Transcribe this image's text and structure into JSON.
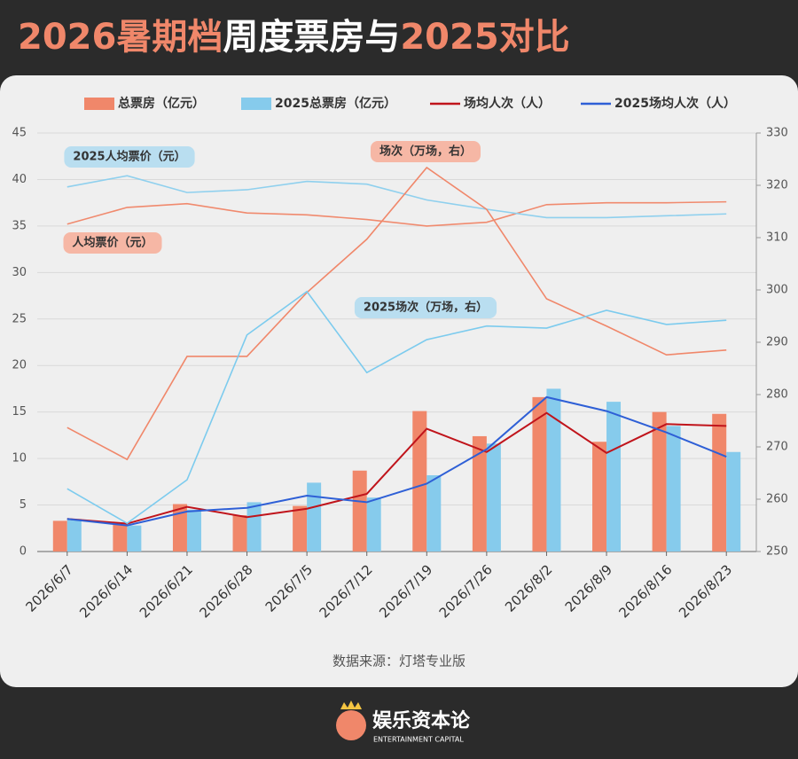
{
  "chart_data": {
    "type": "bar-line",
    "title": [
      "2026暑期档",
      "周度票房与",
      "2025对比"
    ],
    "source": "数据来源：灯塔专业版",
    "brand": "娱乐资本论",
    "brand_sub": "ENTERTAINMENT CAPITAL",
    "categories": [
      "2026/6/7",
      "2026/6/14",
      "2026/6/21",
      "2026/6/28",
      "2026/7/5",
      "2026/7/12",
      "2026/7/19",
      "2026/7/26",
      "2026/8/2",
      "2026/8/9",
      "2026/8/16",
      "2026/8/23"
    ],
    "ylim": [
      0,
      45
    ],
    "yticks": [
      0,
      5,
      10,
      15,
      20,
      25,
      30,
      35,
      40,
      45
    ],
    "y2lim": [
      250,
      330
    ],
    "y2ticks": [
      250,
      260,
      270,
      280,
      290,
      300,
      310,
      320,
      330
    ],
    "grid": true,
    "legend": "top",
    "series": [
      {
        "name": "总票房（亿元）",
        "type": "bar",
        "legend": true,
        "color": "#f0876a",
        "values": [
          3.3,
          3.0,
          5.1,
          3.9,
          4.9,
          8.7,
          15.1,
          12.4,
          16.6,
          11.8,
          15.0,
          14.8
        ]
      },
      {
        "name": "2025总票房（亿元）",
        "type": "bar",
        "legend": true,
        "color": "#86cbec",
        "values": [
          3.5,
          2.8,
          4.5,
          5.3,
          7.4,
          5.8,
          8.2,
          11.6,
          17.5,
          16.1,
          13.5,
          10.7
        ]
      },
      {
        "name": "场均人次（人）",
        "type": "line",
        "legend": true,
        "color": "#c0141b",
        "values": [
          3.5,
          3.0,
          4.8,
          3.7,
          4.6,
          6.2,
          13.2,
          10.7,
          14.9,
          10.6,
          13.7,
          13.5
        ]
      },
      {
        "name": "2025场均人次（人）",
        "type": "line",
        "legend": true,
        "color": "#2e5fd6",
        "values": [
          3.5,
          2.8,
          4.3,
          4.7,
          6.0,
          5.3,
          7.3,
          11.0,
          16.6,
          15.1,
          12.8,
          10.2
        ]
      },
      {
        "name": "人均票价（元）",
        "type": "line",
        "legend": false,
        "color": "#f08a6e",
        "values": [
          35.2,
          37.0,
          37.4,
          36.4,
          36.2,
          35.7,
          35.0,
          35.4,
          37.3,
          37.5,
          37.5,
          37.6
        ]
      },
      {
        "name": "2025人均票价（元）",
        "type": "line",
        "legend": false,
        "color": "#8fd0ee",
        "values": [
          39.2,
          40.4,
          38.6,
          38.9,
          39.8,
          39.5,
          37.8,
          36.8,
          35.9,
          35.9,
          36.1,
          36.3
        ]
      },
      {
        "name": "场次（万场，右）",
        "type": "line",
        "axis": "y2",
        "legend": false,
        "color": "#f0876a",
        "values": [
          273.7,
          267.6,
          287.3,
          287.3,
          299.5,
          309.7,
          323.4,
          315.4,
          298.3,
          293.1,
          287.6,
          288.5
        ]
      },
      {
        "name": "2025场次（万场，右）",
        "type": "line",
        "axis": "y2",
        "legend": false,
        "color": "#7ccbee",
        "values": [
          262.0,
          255.4,
          263.7,
          291.4,
          299.7,
          284.2,
          290.5,
          293.1,
          292.7,
          296.1,
          293.4,
          294.2
        ]
      }
    ]
  }
}
